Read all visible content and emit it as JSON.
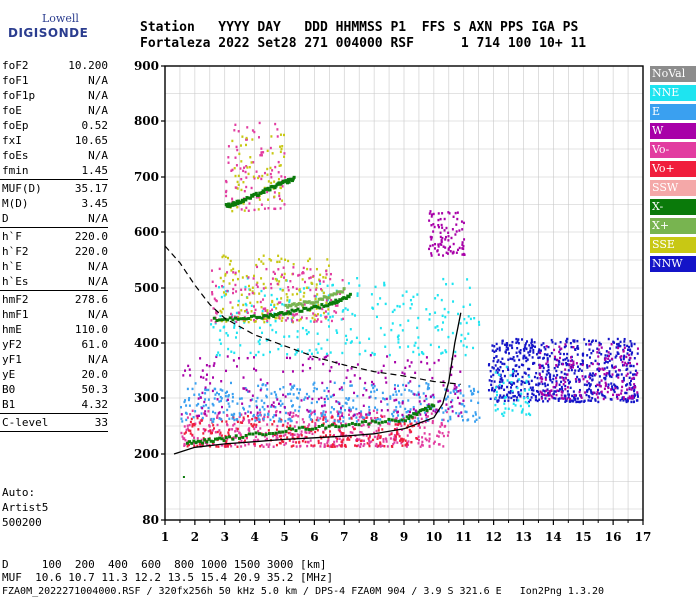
{
  "logo": {
    "top": "Lowell",
    "main": "DIGISONDE"
  },
  "header": {
    "row1": "Station   YYYY DAY   DDD HHMMSS P1  FFS S AXN PPS IGA PS",
    "row2": "Fortaleza 2022 Set28 271 004000 RSF      1 714 100 10+ 11"
  },
  "params": [
    {
      "name": "foF2",
      "value": "10.200"
    },
    {
      "name": "foF1",
      "value": "N/A"
    },
    {
      "name": "foF1p",
      "value": "N/A"
    },
    {
      "name": "foE",
      "value": "N/A"
    },
    {
      "name": "foEp",
      "value": "0.52"
    },
    {
      "name": "fxI",
      "value": "10.65"
    },
    {
      "name": "foEs",
      "value": "N/A"
    },
    {
      "name": "fmin",
      "value": "1.45"
    },
    {
      "sep": true
    },
    {
      "name": "MUF(D)",
      "value": "35.17"
    },
    {
      "name": "M(D)",
      "value": "3.45"
    },
    {
      "name": "D",
      "value": "N/A"
    },
    {
      "sep": true
    },
    {
      "name": "h`F",
      "value": "220.0"
    },
    {
      "name": "h`F2",
      "value": "220.0"
    },
    {
      "name": "h`E",
      "value": "N/A"
    },
    {
      "name": "h`Es",
      "value": "N/A"
    },
    {
      "sep": true
    },
    {
      "name": "hmF2",
      "value": "278.6"
    },
    {
      "name": "hmF1",
      "value": "N/A"
    },
    {
      "name": "hmE",
      "value": "110.0"
    },
    {
      "name": "yF2",
      "value": "61.0"
    },
    {
      "name": "yF1",
      "value": "N/A"
    },
    {
      "name": "yE",
      "value": "20.0"
    },
    {
      "name": "B0",
      "value": "50.3"
    },
    {
      "name": "B1",
      "value": "4.32"
    },
    {
      "sep": true
    },
    {
      "name": "C-level",
      "value": "33"
    },
    {
      "sep": true
    }
  ],
  "auto": [
    "Auto:",
    "Artist5",
    "500200"
  ],
  "legend": [
    {
      "label": "NoVal",
      "color": "#8c8c8c"
    },
    {
      "label": "NNE",
      "color": "#1ee4f0"
    },
    {
      "label": "E",
      "color": "#3aa0f0"
    },
    {
      "label": "W",
      "color": "#a800a8"
    },
    {
      "label": "Vo-",
      "color": "#e23ca0"
    },
    {
      "label": "Vo+",
      "color": "#f01e3c"
    },
    {
      "label": "SSW",
      "color": "#f4a8a8"
    },
    {
      "label": "X-",
      "color": "#0a7a0a"
    },
    {
      "label": "X+",
      "color": "#78b450"
    },
    {
      "label": "SSE",
      "color": "#c8c814"
    },
    {
      "label": "NNW",
      "color": "#1414c8"
    }
  ],
  "footer": {
    "line1": "D     100  200  400  600  800 1000 1500 3000 [km]",
    "line2": "MUF  10.6 10.7 11.3 12.2 13.5 15.4 20.9 35.2 [MHz]",
    "line3": "FZA0M_2022271004000.RSF / 320fx256h 50 kHz 5.0 km / DPS-4 FZA0M 904 / 3.9 S 321.6 E   Ion2Png 1.3.20"
  },
  "chart_data": {
    "type": "scatter",
    "xlabel": "",
    "ylabel": "",
    "xlim": [
      1,
      17
    ],
    "ylim": [
      80,
      900
    ],
    "xticks": [
      1,
      2,
      3,
      4,
      5,
      6,
      7,
      8,
      9,
      10,
      11,
      12,
      13,
      14,
      15,
      16,
      17
    ],
    "yticks": [
      80,
      200,
      300,
      400,
      500,
      600,
      700,
      800,
      900
    ],
    "grid": true,
    "clusters": [
      {
        "mode": "Vo-",
        "xmin": 1.5,
        "xmax": 10.5,
        "ymin": 215,
        "ymax": 280,
        "count": 420
      },
      {
        "mode": "Vo+",
        "xmin": 1.6,
        "xmax": 9.5,
        "ymin": 215,
        "ymax": 270,
        "count": 260
      },
      {
        "mode": "E",
        "xmin": 1.5,
        "xmax": 11.5,
        "ymin": 260,
        "ymax": 330,
        "count": 380
      },
      {
        "mode": "W",
        "xmin": 1.5,
        "xmax": 11.0,
        "ymin": 270,
        "ymax": 380,
        "count": 220
      },
      {
        "mode": "NNW",
        "xmin": 11.8,
        "xmax": 16.8,
        "ymin": 295,
        "ymax": 410,
        "count": 650
      },
      {
        "mode": "W",
        "xmin": 13.5,
        "xmax": 16.8,
        "ymin": 300,
        "ymax": 400,
        "count": 180
      },
      {
        "mode": "NNE",
        "xmin": 2.5,
        "xmax": 11.5,
        "ymin": 380,
        "ymax": 520,
        "count": 260
      },
      {
        "mode": "SSE",
        "xmin": 2.8,
        "xmax": 6.5,
        "ymin": 440,
        "ymax": 560,
        "count": 160
      },
      {
        "mode": "Vo-",
        "xmin": 2.5,
        "xmax": 7.0,
        "ymin": 440,
        "ymax": 540,
        "count": 150
      },
      {
        "mode": "W",
        "xmin": 9.8,
        "xmax": 11.0,
        "ymin": 560,
        "ymax": 640,
        "count": 90
      },
      {
        "mode": "Vo-",
        "xmin": 3.0,
        "xmax": 5.0,
        "ymin": 640,
        "ymax": 800,
        "count": 90
      },
      {
        "mode": "SSE",
        "xmin": 3.0,
        "xmax": 5.0,
        "ymin": 640,
        "ymax": 780,
        "count": 60
      },
      {
        "mode": "NNE",
        "xmin": 12.0,
        "xmax": 13.2,
        "ymin": 270,
        "ymax": 360,
        "count": 50
      }
    ],
    "traces": [
      {
        "name": "X- trace low",
        "mode": "X-",
        "points": [
          [
            1.7,
            222
          ],
          [
            3,
            230
          ],
          [
            5,
            245
          ],
          [
            7,
            255
          ],
          [
            9,
            265
          ],
          [
            10,
            290
          ]
        ]
      },
      {
        "name": "X- trace mid",
        "mode": "X-",
        "points": [
          [
            2.6,
            445
          ],
          [
            4.2,
            450
          ],
          [
            5.2,
            460
          ],
          [
            6.4,
            472
          ],
          [
            7.2,
            490
          ]
        ]
      },
      {
        "name": "X- trace high",
        "mode": "X-",
        "points": [
          [
            3.0,
            650
          ],
          [
            3.5,
            658
          ],
          [
            4.2,
            675
          ],
          [
            4.8,
            690
          ],
          [
            5.3,
            700
          ]
        ]
      },
      {
        "name": "X+ trace",
        "mode": "X+",
        "points": [
          [
            5,
            470
          ],
          [
            6,
            478
          ],
          [
            7,
            500
          ]
        ]
      }
    ],
    "profile_solid": [
      [
        1.3,
        200
      ],
      [
        2,
        212
      ],
      [
        3,
        218
      ],
      [
        4,
        222
      ],
      [
        5,
        226
      ],
      [
        6,
        229
      ],
      [
        7,
        232
      ],
      [
        8,
        236
      ],
      [
        9,
        245
      ],
      [
        10,
        265
      ],
      [
        10.3,
        290
      ],
      [
        10.5,
        330
      ],
      [
        10.7,
        400
      ],
      [
        10.9,
        455
      ]
    ],
    "profile_dashed": [
      [
        1.0,
        575
      ],
      [
        1.5,
        545
      ],
      [
        2,
        505
      ],
      [
        2.5,
        470
      ],
      [
        3,
        445
      ],
      [
        4,
        415
      ],
      [
        5,
        395
      ],
      [
        6,
        375
      ],
      [
        7,
        360
      ],
      [
        8,
        348
      ],
      [
        9,
        340
      ],
      [
        10,
        330
      ],
      [
        10.9,
        325
      ]
    ]
  }
}
